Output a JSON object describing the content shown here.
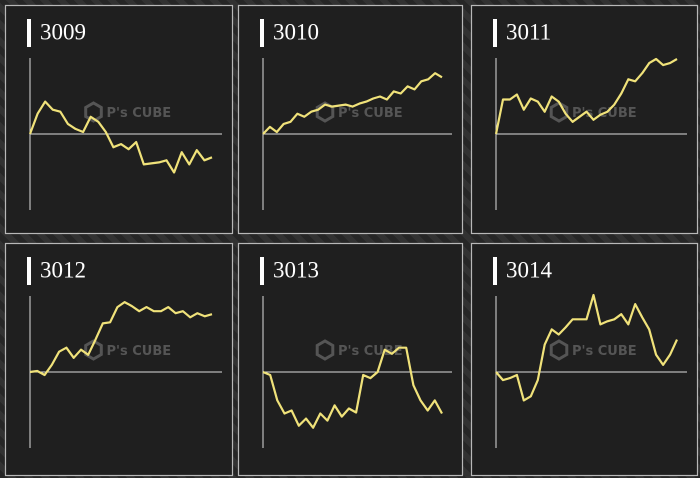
{
  "watermark": "P's CUBE",
  "chart_data": [
    {
      "type": "line",
      "title": "3009",
      "color": "#f0e27a",
      "ylim": [
        -75,
        75
      ],
      "values": [
        0,
        20,
        32,
        24,
        22,
        10,
        5,
        2,
        17,
        12,
        2,
        -13,
        -10,
        -15,
        -8,
        -30,
        -29,
        -28,
        -26,
        -38,
        -18,
        -30,
        -16,
        -26,
        -23
      ]
    },
    {
      "type": "line",
      "title": "3010",
      "color": "#f0e27a",
      "ylim": [
        -75,
        75
      ],
      "values": [
        0,
        7,
        2,
        10,
        12,
        20,
        17,
        22,
        24,
        29,
        27,
        28,
        29,
        27,
        30,
        32,
        35,
        37,
        34,
        42,
        40,
        47,
        44,
        52,
        54,
        60,
        56
      ]
    },
    {
      "type": "line",
      "title": "3011",
      "color": "#f0e27a",
      "ylim": [
        -75,
        75
      ],
      "values": [
        0,
        34,
        34,
        39,
        24,
        35,
        32,
        22,
        37,
        32,
        20,
        12,
        17,
        22,
        14,
        19,
        22,
        29,
        40,
        54,
        52,
        60,
        70,
        74,
        68,
        70,
        74
      ]
    },
    {
      "type": "line",
      "title": "3012",
      "color": "#f0e27a",
      "ylim": [
        -75,
        75
      ],
      "values": [
        0,
        1,
        -3,
        7,
        20,
        24,
        14,
        22,
        17,
        32,
        48,
        49,
        64,
        69,
        65,
        60,
        64,
        60,
        60,
        64,
        58,
        60,
        54,
        58,
        55,
        57
      ]
    },
    {
      "type": "line",
      "title": "3013",
      "color": "#f0e27a",
      "ylim": [
        -75,
        75
      ],
      "values": [
        0,
        -3,
        -28,
        -41,
        -38,
        -53,
        -46,
        -55,
        -41,
        -48,
        -33,
        -44,
        -36,
        -40,
        -3,
        -6,
        0,
        22,
        18,
        24,
        24,
        -13,
        -28,
        -38,
        -28,
        -41
      ]
    },
    {
      "type": "line",
      "title": "3014",
      "color": "#f0e27a",
      "ylim": [
        -75,
        75
      ],
      "values": [
        0,
        -8,
        -6,
        -3,
        -28,
        -24,
        -8,
        27,
        42,
        37,
        44,
        52,
        52,
        52,
        76,
        47,
        50,
        52,
        57,
        47,
        67,
        54,
        42,
        17,
        7,
        17,
        32
      ]
    }
  ]
}
